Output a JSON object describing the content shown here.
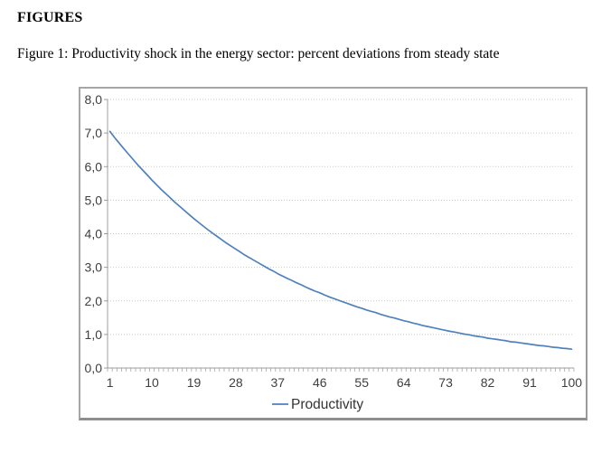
{
  "page": {
    "heading": "FIGURES",
    "caption": "Figure 1: Productivity shock in the energy sector: percent deviations from steady state"
  },
  "chart_data": {
    "type": "line",
    "title": "",
    "xlabel": "",
    "ylabel": "",
    "x_range": [
      1,
      100
    ],
    "x_ticks": [
      1,
      10,
      19,
      28,
      37,
      46,
      55,
      64,
      73,
      82,
      91,
      100
    ],
    "y_tick_labels": [
      "0,0",
      "1,0",
      "2,0",
      "3,0",
      "4,0",
      "5,0",
      "6,0",
      "7,0",
      "8,0"
    ],
    "ylim": [
      0,
      8
    ],
    "grid": "horizontal-dotted",
    "legend_position": "bottom",
    "series": [
      {
        "name": "Productivity",
        "color": "#4F81BD",
        "values": [
          7.05,
          6.87,
          6.7,
          6.53,
          6.37,
          6.21,
          6.05,
          5.9,
          5.75,
          5.6,
          5.46,
          5.32,
          5.19,
          5.06,
          4.93,
          4.81,
          4.69,
          4.57,
          4.45,
          4.34,
          4.23,
          4.12,
          4.02,
          3.92,
          3.82,
          3.72,
          3.63,
          3.54,
          3.45,
          3.36,
          3.28,
          3.2,
          3.12,
          3.04,
          2.96,
          2.89,
          2.81,
          2.74,
          2.67,
          2.61,
          2.54,
          2.48,
          2.41,
          2.35,
          2.29,
          2.24,
          2.18,
          2.12,
          2.07,
          2.02,
          1.97,
          1.92,
          1.87,
          1.82,
          1.78,
          1.73,
          1.69,
          1.65,
          1.6,
          1.56,
          1.52,
          1.49,
          1.45,
          1.41,
          1.38,
          1.34,
          1.31,
          1.27,
          1.24,
          1.21,
          1.18,
          1.15,
          1.12,
          1.09,
          1.07,
          1.04,
          1.01,
          0.99,
          0.96,
          0.94,
          0.92,
          0.89,
          0.87,
          0.85,
          0.83,
          0.81,
          0.78,
          0.77,
          0.75,
          0.73,
          0.71,
          0.69,
          0.67,
          0.66,
          0.64,
          0.62,
          0.61,
          0.59,
          0.58,
          0.56
        ]
      }
    ],
    "colors": {
      "line": "#4F81BD",
      "axis": "#9C9C9C",
      "gridline": "#C8C8C8",
      "tick_text": "#3F3F3F",
      "legend_text": "#333333",
      "frame_border": "#A6A6A6"
    }
  }
}
